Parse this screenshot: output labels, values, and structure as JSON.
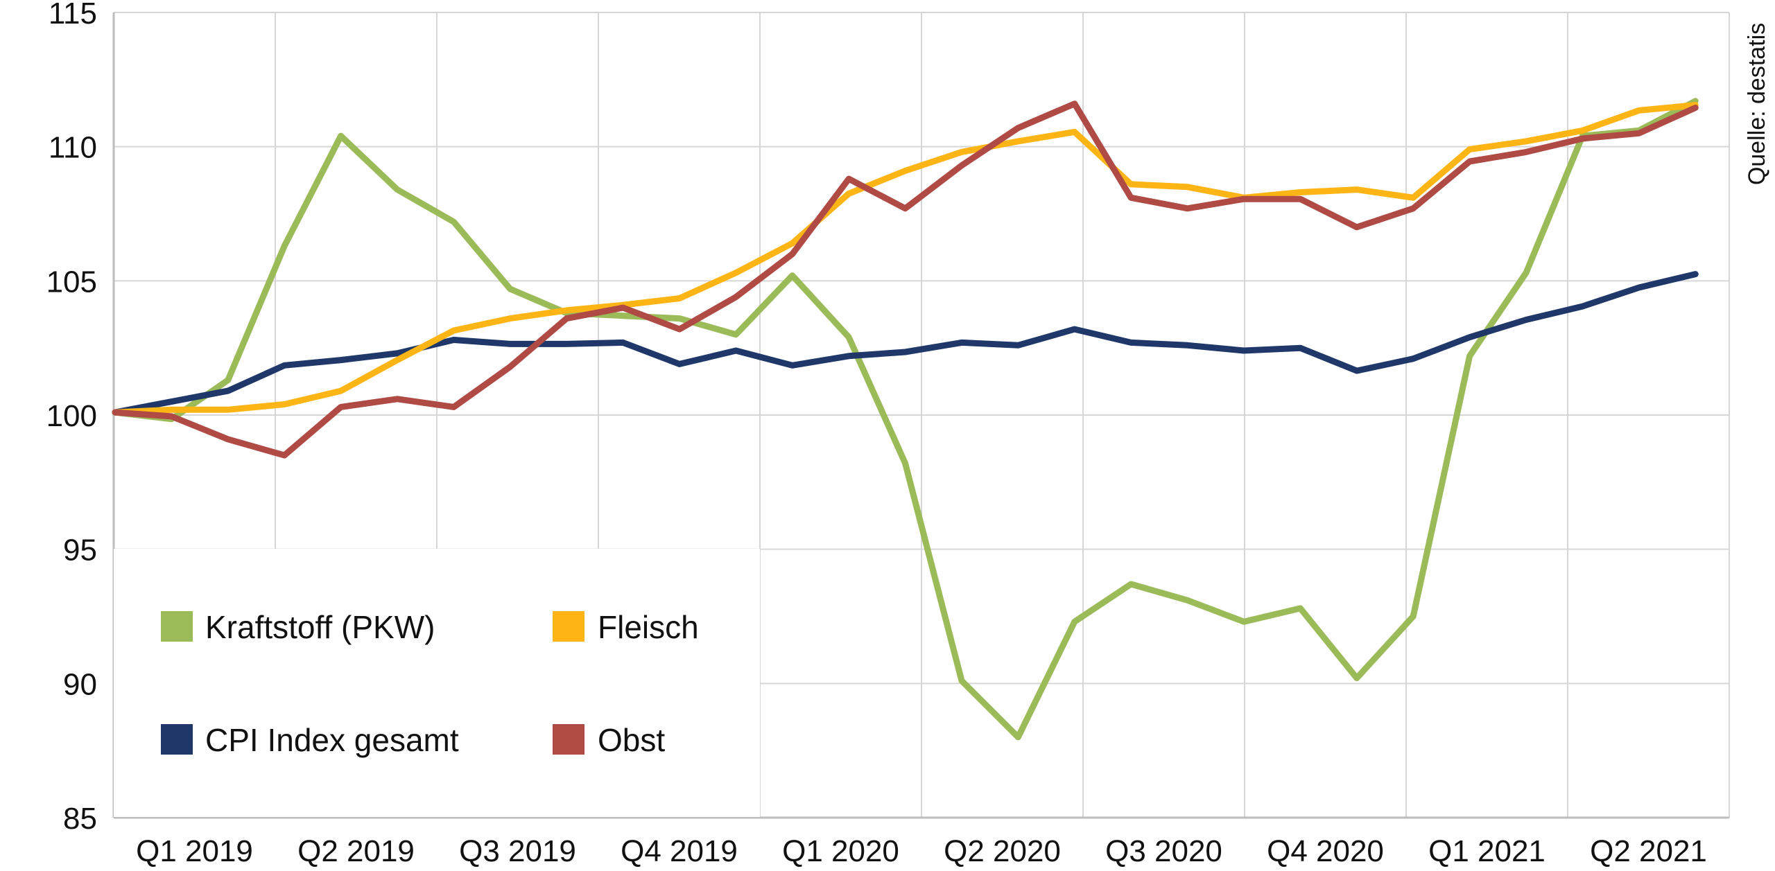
{
  "chart_data": {
    "type": "line",
    "title": "",
    "xlabel": "",
    "ylabel": "",
    "ylim": [
      85,
      115
    ],
    "yticks": [
      "85",
      "90",
      "95",
      "100",
      "105",
      "110",
      "115"
    ],
    "xtick_labels": [
      "Q1 2019",
      "Q2 2019",
      "Q3 2019",
      "Q4 2019",
      "Q1 2020",
      "Q2 2020",
      "Q3 2020",
      "Q4 2020",
      "Q1 2021",
      "Q2 2021"
    ],
    "grid": true,
    "legend_position": "bottom-left",
    "source": "Quelle: destatis",
    "series": [
      {
        "name": "Kraftstoff (PKW)",
        "color": "#9bbb59",
        "values": [
          100.1,
          99.85,
          101.3,
          106.3,
          110.4,
          108.4,
          107.2,
          104.7,
          103.8,
          103.7,
          103.6,
          103.0,
          105.2,
          102.9,
          98.2,
          90.1,
          88.0,
          92.3,
          93.7,
          93.1,
          92.3,
          92.8,
          90.2,
          92.5,
          102.2,
          105.3,
          110.4,
          110.6,
          111.7
        ]
      },
      {
        "name": "Fleisch",
        "color": "#fdb515",
        "values": [
          100.1,
          100.2,
          100.2,
          100.4,
          100.9,
          102.05,
          103.15,
          103.6,
          103.9,
          104.1,
          104.35,
          105.3,
          106.4,
          108.25,
          109.1,
          109.8,
          110.2,
          110.55,
          108.6,
          108.5,
          108.1,
          108.3,
          108.4,
          108.1,
          109.9,
          110.2,
          110.6,
          111.35,
          111.55
        ]
      },
      {
        "name": "CPI Index gesamt",
        "color": "#1f3869",
        "values": [
          100.1,
          100.5,
          100.9,
          101.85,
          102.05,
          102.3,
          102.8,
          102.65,
          102.65,
          102.7,
          101.9,
          102.4,
          101.85,
          102.2,
          102.35,
          102.7,
          102.6,
          103.2,
          102.7,
          102.6,
          102.4,
          102.5,
          101.65,
          102.1,
          102.9,
          103.55,
          104.05,
          104.75,
          105.25
        ]
      },
      {
        "name": "Obst",
        "color": "#b04a45",
        "values": [
          100.1,
          99.95,
          99.1,
          98.5,
          100.3,
          100.6,
          100.3,
          101.8,
          103.6,
          104.0,
          103.2,
          104.4,
          106.0,
          108.8,
          107.7,
          109.3,
          110.7,
          111.6,
          108.1,
          107.7,
          108.05,
          108.05,
          107.0,
          107.7,
          109.45,
          109.8,
          110.3,
          110.5,
          111.45
        ]
      }
    ]
  }
}
